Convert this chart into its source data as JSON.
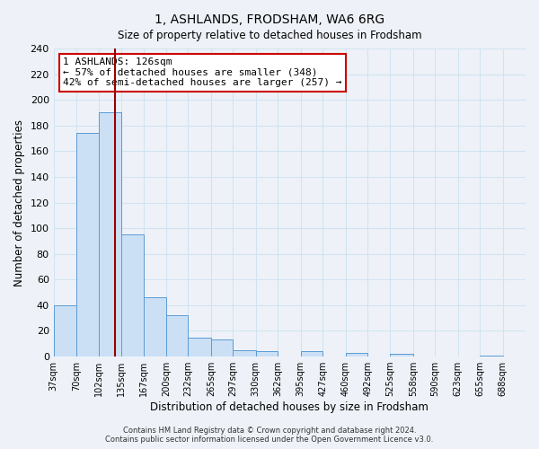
{
  "title": "1, ASHLANDS, FRODSHAM, WA6 6RG",
  "subtitle": "Size of property relative to detached houses in Frodsham",
  "xlabel": "Distribution of detached houses by size in Frodsham",
  "ylabel": "Number of detached properties",
  "bin_edges": [
    37,
    70,
    102,
    135,
    167,
    200,
    232,
    265,
    297,
    330,
    362,
    395,
    427,
    460,
    492,
    525,
    558,
    590,
    623,
    655,
    688
  ],
  "bar_heights": [
    40,
    174,
    190,
    95,
    46,
    32,
    15,
    13,
    5,
    4,
    0,
    4,
    0,
    3,
    0,
    2,
    0,
    0,
    0,
    1
  ],
  "bar_color": "#cce0f5",
  "bar_edge_color": "#5b9bd5",
  "grid_color": "#d0e4f0",
  "property_size": 126,
  "vline_color": "#990000",
  "ylim": [
    0,
    240
  ],
  "yticks": [
    0,
    20,
    40,
    60,
    80,
    100,
    120,
    140,
    160,
    180,
    200,
    220,
    240
  ],
  "annotation_title": "1 ASHLANDS: 126sqm",
  "annotation_line1": "← 57% of detached houses are smaller (348)",
  "annotation_line2": "42% of semi-detached houses are larger (257) →",
  "annotation_box_color": "#ffffff",
  "annotation_box_edge": "#cc0000",
  "footer_line1": "Contains HM Land Registry data © Crown copyright and database right 2024.",
  "footer_line2": "Contains public sector information licensed under the Open Government Licence v3.0.",
  "background_color": "#eef2f8"
}
